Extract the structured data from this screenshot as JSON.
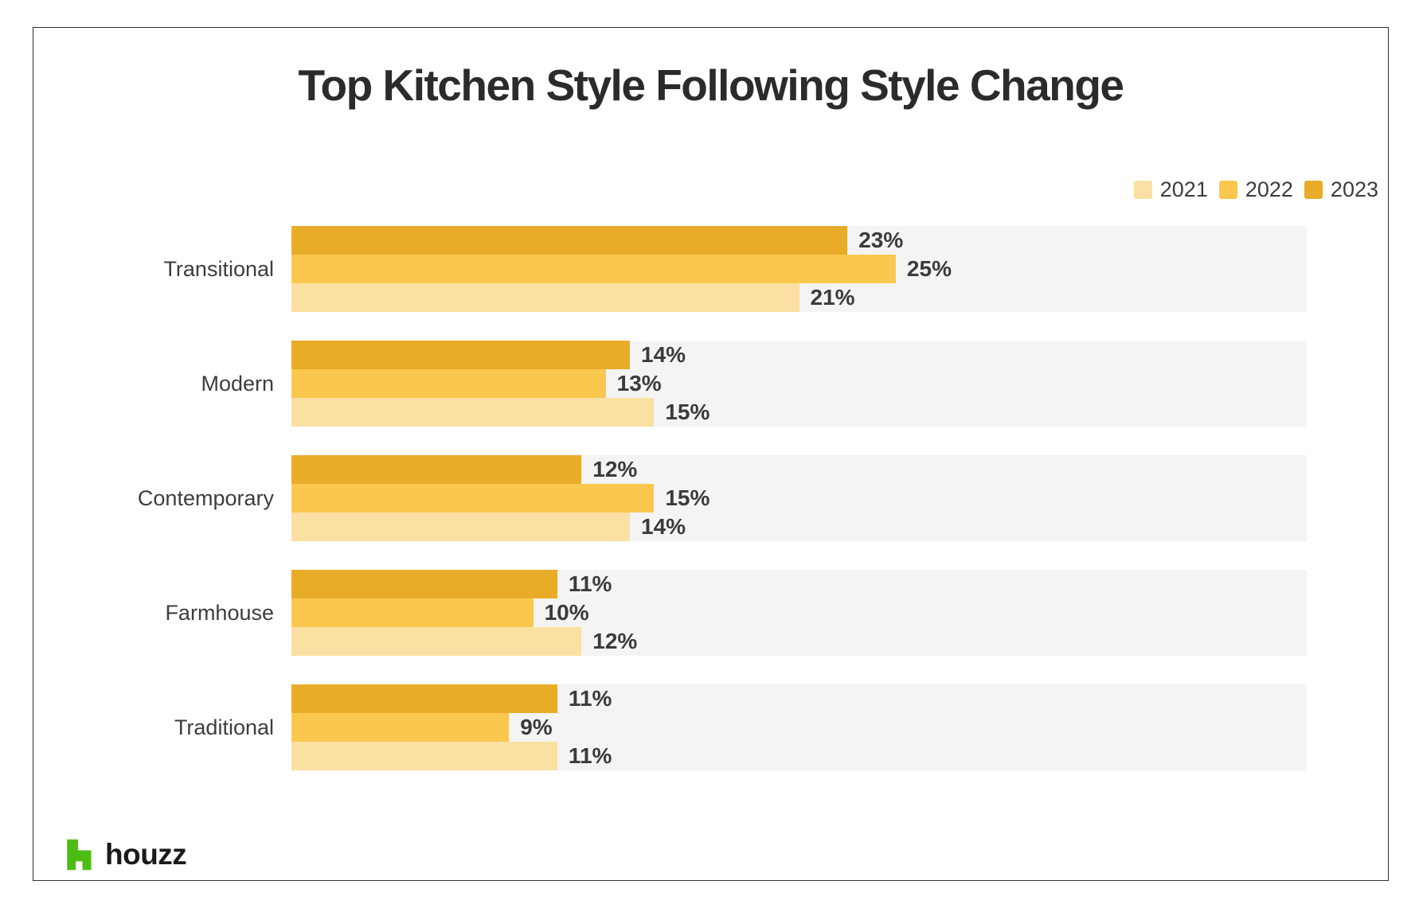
{
  "title": "Top Kitchen Style Following Style Change",
  "legend": {
    "items": [
      {
        "label": "2021",
        "color": "#FCDFA2"
      },
      {
        "label": "2022",
        "color": "#FBC84F"
      },
      {
        "label": "2023",
        "color": "#E8AC28"
      }
    ]
  },
  "chart_data": {
    "type": "bar",
    "orientation": "horizontal",
    "title": "Top Kitchen Style Following Style Change",
    "categories": [
      "Transitional",
      "Modern",
      "Contemporary",
      "Farmhouse",
      "Traditional"
    ],
    "series": [
      {
        "name": "2023",
        "color": "#E8AC28",
        "values": [
          23,
          14,
          12,
          11,
          11
        ]
      },
      {
        "name": "2022",
        "color": "#FBC84F",
        "values": [
          25,
          13,
          15,
          10,
          9
        ]
      },
      {
        "name": "2021",
        "color": "#FCDFA2",
        "values": [
          21,
          15,
          14,
          12,
          11
        ]
      }
    ],
    "bar_order_top_to_bottom": [
      "2023",
      "2022",
      "2021"
    ],
    "value_suffix": "%",
    "xlim": [
      0,
      42
    ],
    "grid": false,
    "legend_position": "top-right",
    "track_color": "#F4F4F4"
  },
  "footer": {
    "brand_text": "houzz",
    "brand_color": "#4DBC15",
    "brand_icon": "houzz-h-icon"
  }
}
